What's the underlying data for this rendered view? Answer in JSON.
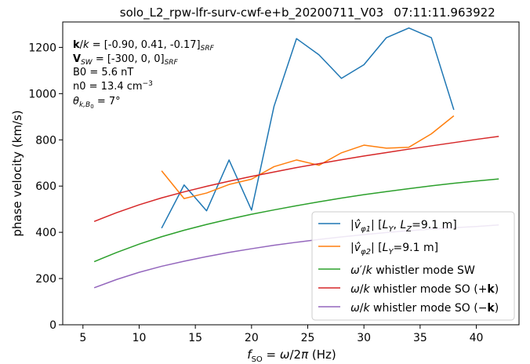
{
  "chart_data": {
    "type": "line",
    "title_left": "solo_L2_rpw-lfr-surv-cwf-e+b_20200711_V03",
    "title_right": "07:11:11.963922",
    "xlabel": "f_SO = ω/2π  (Hz)",
    "ylabel": "phase velocity (km/s)",
    "xlim": [
      3.2,
      43.8
    ],
    "ylim": [
      0,
      1310
    ],
    "xticks": [
      5,
      10,
      15,
      20,
      25,
      30,
      35,
      40
    ],
    "yticks": [
      0,
      200,
      400,
      600,
      800,
      1000,
      1200
    ],
    "grid": false,
    "legend_position": "lower-right",
    "annotations": [
      "k/k = [-0.90, 0.41, -0.17]SRF",
      "VSW = [-300, 0, 0]SRF",
      "B0 = 5.6 nT",
      "n0 = 13.4 cm−3",
      "θk,B0 = 7°"
    ],
    "series": [
      {
        "name": "|v̂φ1|   [LY, LZ=9.1 m]",
        "color": "#1f77b4",
        "x": [
          12,
          14,
          16,
          18,
          20,
          22,
          24,
          26,
          28,
          30,
          32,
          34,
          36,
          38
        ],
        "y": [
          418,
          605,
          493,
          713,
          496,
          945,
          1238,
          1168,
          1066,
          1125,
          1242,
          1284,
          1242,
          930
        ]
      },
      {
        "name": "|v̂φ2|   [LY=9.1 m]",
        "color": "#ff7f0e",
        "x": [
          12,
          14,
          16,
          18,
          20,
          22,
          24,
          26,
          28,
          30,
          32,
          34,
          36,
          38
        ],
        "y": [
          666,
          546,
          570,
          607,
          630,
          684,
          713,
          690,
          744,
          777,
          764,
          768,
          826,
          904
        ]
      },
      {
        "name": "ω'/k whistler mode SW",
        "color": "#2ca02c",
        "x": [
          6,
          8,
          10,
          12,
          14,
          16,
          18,
          20,
          22,
          24,
          26,
          28,
          30,
          32,
          34,
          36,
          38,
          40,
          42
        ],
        "y": [
          273,
          313,
          349,
          381,
          409,
          434,
          457,
          478,
          497,
          515,
          532,
          548,
          563,
          576,
          589,
          601,
          612,
          622,
          631
        ]
      },
      {
        "name": "ω/k whistler mode SO (+k)",
        "color": "#d62728",
        "x": [
          6,
          8,
          10,
          12,
          14,
          16,
          18,
          20,
          22,
          24,
          26,
          28,
          30,
          32,
          34,
          36,
          38,
          40,
          42
        ],
        "y": [
          447,
          485,
          519,
          549,
          575,
          599,
          621,
          642,
          661,
          680,
          697,
          714,
          730,
          745,
          760,
          774,
          788,
          802,
          815
        ]
      },
      {
        "name": "ω/k whistler mode SO (−k)",
        "color": "#9467bd",
        "x": [
          6,
          8,
          10,
          12,
          14,
          16,
          18,
          20,
          22,
          24,
          26,
          28,
          30,
          32,
          34,
          36,
          38,
          40,
          42
        ],
        "y": [
          160,
          196,
          227,
          253,
          275,
          295,
          313,
          329,
          344,
          357,
          369,
          380,
          390,
          399,
          407,
          414,
          420,
          425,
          432
        ]
      }
    ]
  }
}
